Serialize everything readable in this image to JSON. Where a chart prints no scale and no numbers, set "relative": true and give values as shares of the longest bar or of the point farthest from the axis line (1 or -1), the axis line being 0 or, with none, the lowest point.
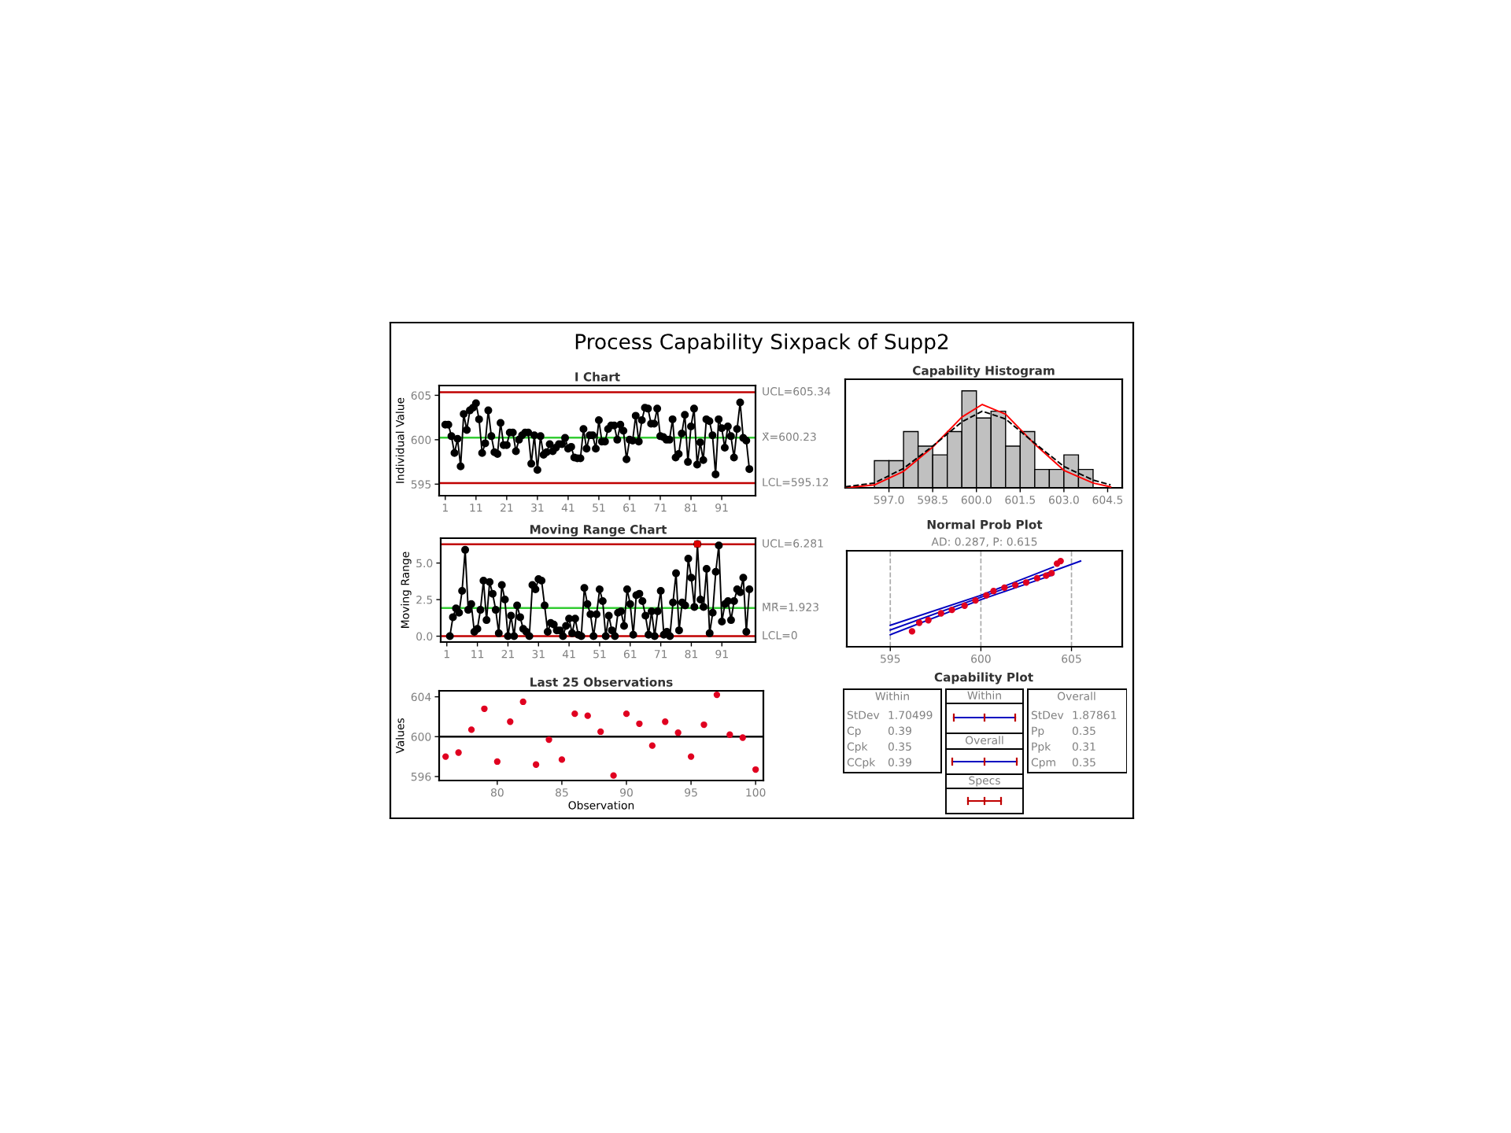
{
  "chart_data": [
    {
      "type": "other",
      "title": "Process Capability Sixpack of Supp2"
    },
    {
      "type": "line",
      "title": "I Chart",
      "ylabel": "Individual Value",
      "marker": "circle",
      "line_style": "solid",
      "x": [
        1,
        2,
        3,
        4,
        5,
        6,
        7,
        8,
        9,
        10,
        11,
        12,
        13,
        14,
        15,
        16,
        17,
        18,
        19,
        20,
        21,
        22,
        23,
        24,
        25,
        26,
        27,
        28,
        29,
        30,
        31,
        32,
        33,
        34,
        35,
        36,
        37,
        38,
        39,
        40,
        41,
        42,
        43,
        44,
        45,
        46,
        47,
        48,
        49,
        50,
        51,
        52,
        53,
        54,
        55,
        56,
        57,
        58,
        59,
        60,
        61,
        62,
        63,
        64,
        65,
        66,
        67,
        68,
        69,
        70,
        71,
        72,
        73,
        74,
        75,
        76,
        77,
        78,
        79,
        80,
        81,
        82,
        83,
        84,
        85,
        86,
        87,
        88,
        89,
        90,
        91,
        92,
        93,
        94,
        95,
        96,
        97,
        98,
        99,
        100
      ],
      "series": [
        {
          "color": "#000000",
          "values": [
            601.7,
            601.7,
            600.4,
            598.5,
            600.1,
            597.0,
            602.9,
            601.1,
            603.3,
            603.6,
            604.1,
            602.3,
            598.5,
            599.6,
            603.3,
            600.4,
            598.6,
            598.4,
            601.9,
            599.4,
            599.4,
            600.8,
            600.8,
            598.7,
            600.0,
            600.5,
            600.8,
            600.8,
            597.3,
            600.5,
            596.6,
            600.4,
            598.3,
            598.6,
            599.5,
            598.7,
            599.1,
            599.5,
            599.5,
            600.2,
            599.0,
            599.2,
            598.0,
            597.9,
            597.9,
            601.2,
            599.0,
            600.5,
            600.5,
            599.0,
            602.2,
            599.8,
            599.8,
            601.2,
            601.6,
            601.6,
            600.0,
            601.7,
            601.0,
            597.8,
            600.0,
            599.9,
            602.7,
            599.8,
            602.2,
            603.6,
            603.5,
            601.8,
            601.8,
            603.5,
            600.4,
            600.3,
            600.0,
            600.0,
            602.3,
            598.0,
            598.4,
            600.7,
            602.8,
            597.5,
            601.5,
            603.5,
            597.2,
            599.7,
            597.7,
            602.3,
            602.1,
            600.5,
            596.1,
            602.3,
            601.3,
            599.1,
            601.5,
            600.4,
            598.0,
            601.2,
            604.2,
            600.2,
            599.9,
            596.7
          ]
        }
      ],
      "xlim": [
        -1,
        102
      ],
      "ylim": [
        593.7,
        606.1
      ],
      "xticks": [
        1,
        11,
        21,
        31,
        41,
        51,
        61,
        71,
        81,
        91
      ],
      "yticks": [
        595,
        600,
        605
      ],
      "ref_lines": [
        {
          "axis": "y",
          "value": 605.34,
          "label": "UCL=605.34",
          "color": "#c00000"
        },
        {
          "axis": "y",
          "value": 600.23,
          "label": "X̄=600.23",
          "color": "#33cc33"
        },
        {
          "axis": "y",
          "value": 595.12,
          "label": "LCL=595.12",
          "color": "#c00000"
        }
      ]
    },
    {
      "type": "line",
      "title": "Moving Range Chart",
      "ylabel": "Moving Range",
      "marker": "circle",
      "line_style": "solid",
      "x": [
        2,
        3,
        4,
        5,
        6,
        7,
        8,
        9,
        10,
        11,
        12,
        13,
        14,
        15,
        16,
        17,
        18,
        19,
        20,
        21,
        22,
        23,
        24,
        25,
        26,
        27,
        28,
        29,
        30,
        31,
        32,
        33,
        34,
        35,
        36,
        37,
        38,
        39,
        40,
        41,
        42,
        43,
        44,
        45,
        46,
        47,
        48,
        49,
        50,
        51,
        52,
        53,
        54,
        55,
        56,
        57,
        58,
        59,
        60,
        61,
        62,
        63,
        64,
        65,
        66,
        67,
        68,
        69,
        70,
        71,
        72,
        73,
        74,
        75,
        76,
        77,
        78,
        79,
        80,
        81,
        82,
        83,
        84,
        85,
        86,
        87,
        88,
        89,
        90,
        91,
        92,
        93,
        94,
        95,
        96,
        97,
        98,
        99,
        100
      ],
      "series": [
        {
          "color": "#000000",
          "values": [
            0.0,
            1.3,
            1.9,
            1.6,
            3.1,
            5.9,
            1.8,
            2.2,
            0.3,
            0.5,
            1.8,
            3.8,
            1.1,
            3.7,
            2.9,
            1.8,
            0.2,
            3.5,
            2.5,
            0.0,
            1.4,
            0.0,
            2.1,
            1.3,
            0.5,
            0.3,
            0.0,
            3.5,
            3.2,
            3.9,
            3.8,
            2.1,
            0.3,
            0.9,
            0.8,
            0.4,
            0.4,
            0.0,
            0.7,
            1.2,
            0.2,
            1.2,
            0.1,
            0.0,
            3.3,
            2.2,
            1.5,
            0.0,
            1.5,
            3.2,
            2.4,
            0.0,
            1.4,
            0.4,
            0.0,
            1.6,
            1.7,
            0.7,
            3.2,
            2.2,
            0.1,
            2.8,
            2.9,
            2.4,
            1.4,
            0.1,
            1.7,
            0.0,
            1.7,
            3.1,
            0.1,
            0.3,
            0.0,
            2.3,
            4.3,
            0.4,
            2.3,
            2.1,
            5.3,
            4.0,
            2.0,
            6.3,
            2.5,
            2.0,
            4.6,
            0.2,
            1.6,
            4.4,
            6.2,
            1.0,
            2.2,
            2.4,
            1.1,
            2.4,
            3.2,
            3.0,
            4.0,
            0.3,
            3.2
          ]
        },
        {
          "type": "scatter",
          "marker": "square",
          "color": "#e00000",
          "x": [
            83
          ],
          "values": [
            6.3
          ]
        }
      ],
      "xlim": [
        -1,
        102
      ],
      "ylim": [
        -0.4,
        6.7
      ],
      "xticks": [
        1,
        11,
        21,
        31,
        41,
        51,
        61,
        71,
        81,
        91
      ],
      "yticks": [
        {
          "value": 0,
          "label": "0.0"
        },
        {
          "value": 2.5,
          "label": "2.5"
        },
        {
          "value": 5,
          "label": "5.0"
        }
      ],
      "ref_lines": [
        {
          "axis": "y",
          "value": 6.281,
          "label": "UCL=6.281",
          "color": "#c00000"
        },
        {
          "axis": "y",
          "value": 1.923,
          "label": "M̄R̄=1.923",
          "color": "#33cc33"
        },
        {
          "axis": "y",
          "value": 0,
          "label": "LCL=0",
          "color": "#c00000"
        }
      ]
    },
    {
      "type": "scatter",
      "title": "Last 25 Observations",
      "xlabel": "Observation",
      "ylabel": "Values",
      "marker": "circle",
      "x": [
        76,
        77,
        78,
        79,
        80,
        81,
        82,
        83,
        84,
        85,
        86,
        87,
        88,
        89,
        90,
        91,
        92,
        93,
        94,
        95,
        96,
        97,
        98,
        99,
        100
      ],
      "series": [
        {
          "color": "#e00020",
          "values": [
            598.0,
            598.4,
            600.7,
            602.8,
            597.5,
            601.5,
            603.5,
            597.2,
            599.7,
            597.7,
            602.3,
            602.1,
            600.5,
            596.1,
            602.3,
            601.3,
            599.1,
            601.5,
            600.4,
            598.0,
            601.2,
            604.2,
            600.2,
            599.9,
            596.7
          ]
        }
      ],
      "xlim": [
        75.5,
        100.6
      ],
      "ylim": [
        595.6,
        604.6
      ],
      "xticks": [
        80,
        85,
        90,
        95,
        100
      ],
      "yticks": [
        596,
        600,
        604
      ],
      "ref_lines": [
        {
          "axis": "y",
          "value": 600,
          "color": "#000000"
        }
      ]
    },
    {
      "type": "histogram",
      "title": "Capability Histogram",
      "relative": true,
      "color": "#c0c0c0",
      "bins": [
        596.5,
        597.0,
        597.5,
        598.0,
        598.5,
        599.0,
        599.5,
        600.0,
        600.5,
        601.0,
        601.5,
        602.0,
        602.5,
        603.0,
        603.5,
        604.0
      ],
      "values": [
        0.28,
        0.28,
        0.58,
        0.43,
        0.34,
        0.58,
        1.0,
        0.72,
        0.79,
        0.43,
        0.58,
        0.19,
        0.19,
        0.34,
        0.19
      ],
      "series": [
        {
          "type": "line",
          "color": "#ff0000",
          "line_style": "solid",
          "x": [
            595.5,
            596.5,
            597.5,
            598.5,
            599.5,
            600.2,
            601.0,
            602.0,
            603.0,
            604.0,
            604.6
          ],
          "values": [
            0.0,
            0.03,
            0.17,
            0.42,
            0.73,
            0.86,
            0.76,
            0.45,
            0.18,
            0.05,
            0.01
          ]
        },
        {
          "type": "line",
          "color": "#000000",
          "line_style": "dashed",
          "x": [
            595.5,
            596.5,
            597.5,
            598.5,
            599.5,
            600.2,
            601.0,
            602.0,
            603.0,
            604.0,
            604.6
          ],
          "values": [
            0.01,
            0.05,
            0.2,
            0.43,
            0.68,
            0.79,
            0.71,
            0.46,
            0.22,
            0.08,
            0.03
          ]
        }
      ],
      "xlim": [
        595.5,
        605.0
      ],
      "xticks": [
        {
          "value": 597,
          "label": "597.0"
        },
        {
          "value": 598.5,
          "label": "598.5"
        },
        {
          "value": 600,
          "label": "600.0"
        },
        {
          "value": 601.5,
          "label": "601.5"
        },
        {
          "value": 603,
          "label": "603.0"
        },
        {
          "value": 604.5,
          "label": "604.5"
        }
      ]
    },
    {
      "type": "scatter",
      "title": "Normal Prob Plot",
      "subtitle": "AD: 0.287, P: 0.615",
      "relative": true,
      "grid": true,
      "tick_labels": "x",
      "marker": "circle",
      "series": [
        {
          "type": "line",
          "color": "#0000c0",
          "line_style": "solid",
          "marker": "none",
          "x": [
            595,
            600,
            605.5
          ],
          "values": [
            0.195,
            0.578,
            1.0
          ]
        },
        {
          "type": "line",
          "color": "#0000c0",
          "line_style": "solid",
          "marker": "none",
          "x": [
            595,
            600,
            604
          ],
          "values": [
            0.25,
            0.6,
            0.93
          ]
        },
        {
          "type": "line",
          "color": "#0000c0",
          "line_style": "solid",
          "marker": "none",
          "x": [
            595,
            600,
            604
          ],
          "values": [
            0.14,
            0.55,
            0.84
          ]
        },
        {
          "type": "scatter",
          "color": "#e00020",
          "x": [
            596.2,
            596.6,
            597.1,
            597.8,
            598.4,
            599.1,
            599.7,
            600.3,
            600.7,
            601.3,
            601.9,
            602.5,
            603.1,
            603.6,
            603.9,
            604.2,
            604.4
          ],
          "values": [
            0.18,
            0.28,
            0.31,
            0.39,
            0.43,
            0.48,
            0.54,
            0.6,
            0.65,
            0.69,
            0.72,
            0.75,
            0.8,
            0.83,
            0.86,
            0.97,
            1.0
          ]
        }
      ],
      "xlim": [
        592.6,
        607.8
      ],
      "xticks": [
        595,
        600,
        605
      ]
    },
    {
      "type": "other",
      "title": "Capability Plot",
      "annotations": [
        "Within",
        "StDev",
        "1.70499",
        "Cp",
        "0.39",
        "Cpk",
        "0.35",
        "CCpk",
        "0.39",
        "Within",
        "Overall",
        "Specs",
        "Overall",
        "StDev",
        "1.87861",
        "Pp",
        "0.35",
        "Ppk",
        "0.31",
        "Cpm",
        "0.35"
      ]
    }
  ]
}
